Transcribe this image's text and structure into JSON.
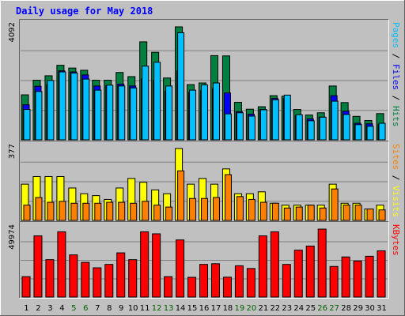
{
  "chart_data": {
    "type": "bar",
    "title": "Daily usage for May 2018",
    "title_color": "#0000ff",
    "x": {
      "labels": [
        "1",
        "2",
        "3",
        "4",
        "5",
        "6",
        "7",
        "8",
        "9",
        "10",
        "11",
        "12",
        "13",
        "14",
        "15",
        "16",
        "17",
        "18",
        "19",
        "20",
        "21",
        "22",
        "23",
        "24",
        "25",
        "26",
        "27",
        "28",
        "29",
        "30",
        "31"
      ],
      "weekend_labels": [
        "5",
        "6",
        "12",
        "13",
        "19",
        "20",
        "26",
        "27"
      ],
      "weekday_color": "#000000",
      "weekend_color": "#006000"
    },
    "panels": [
      {
        "name": "pages-files-hits",
        "max_label": "4092",
        "side_label": [
          "Pages",
          "Files",
          "Hits"
        ],
        "side_colors": [
          "#00c0ff",
          "#0000ff",
          "#008040"
        ],
        "series": [
          {
            "name": "Hits",
            "color": "#008040",
            "values": [
              1630,
              2160,
              2320,
              2700,
              2600,
              2520,
              2160,
              2160,
              2440,
              2290,
              3550,
              3170,
              2240,
              4092,
              2000,
              2060,
              3050,
              3040,
              1360,
              1110,
              1200,
              1600,
              1580,
              1100,
              900,
              980,
              1950,
              1350,
              850,
              700,
              950
            ]
          },
          {
            "name": "Files",
            "color": "#0000ff",
            "values": [
              1270,
              1940,
              2000,
              2500,
              2460,
              2350,
              1950,
              1960,
              2020,
              1950,
              2210,
              2160,
              1760,
              2500,
              1720,
              1780,
              1850,
              1700,
              1020,
              930,
              1100,
              1500,
              1500,
              880,
              760,
              820,
              1600,
              1040,
              600,
              580,
              560
            ]
          },
          {
            "name": "Pages",
            "color": "#00c0ff",
            "values": [
              1100,
              1750,
              2150,
              2460,
              2420,
              2200,
              1800,
              1980,
              1950,
              1880,
              2670,
              2810,
              1950,
              3880,
              1800,
              1990,
              2060,
              940,
              980,
              860,
              1090,
              1450,
              1620,
              910,
              690,
              820,
              1400,
              920,
              550,
              490,
              600
            ]
          }
        ]
      },
      {
        "name": "visits-sites",
        "max_label": "377",
        "side_label": [
          "Sites",
          "Visits"
        ],
        "side_colors": [
          "#ff8000",
          "#ffff00"
        ],
        "series": [
          {
            "name": "Visits",
            "color": "#ffff00",
            "values": [
              190,
              230,
              230,
              230,
              170,
              140,
              130,
              110,
              170,
              220,
              200,
              160,
              140,
              377,
              190,
              220,
              190,
              270,
              140,
              140,
              150,
              90,
              80,
              80,
              80,
              80,
              190,
              90,
              90,
              60,
              80
            ]
          },
          {
            "name": "Sites",
            "color": "#ff8000",
            "values": [
              80,
              120,
              95,
              100,
              90,
              90,
              90,
              95,
              95,
              90,
              100,
              80,
              70,
              260,
              115,
              115,
              120,
              240,
              125,
              110,
              95,
              90,
              65,
              70,
              80,
              65,
              165,
              80,
              80,
              60,
              55
            ]
          }
        ]
      },
      {
        "name": "kbytes",
        "max_label": "49974",
        "side_label": [
          "KBytes"
        ],
        "side_colors": [
          "#ff0000"
        ],
        "series": [
          {
            "name": "KBytes",
            "color": "#ff0000",
            "values": [
              15000,
              45000,
              27500,
              48000,
              31000,
              25500,
              21500,
              24000,
              32500,
              27500,
              48000,
              46500,
              15000,
              42000,
              14500,
              24000,
              24500,
              14600,
              23000,
              21000,
              45000,
              48000,
              24000,
              34500,
              37500,
              49974,
              22500,
              29500,
              26500,
              30000,
              34000
            ]
          }
        ]
      }
    ]
  }
}
